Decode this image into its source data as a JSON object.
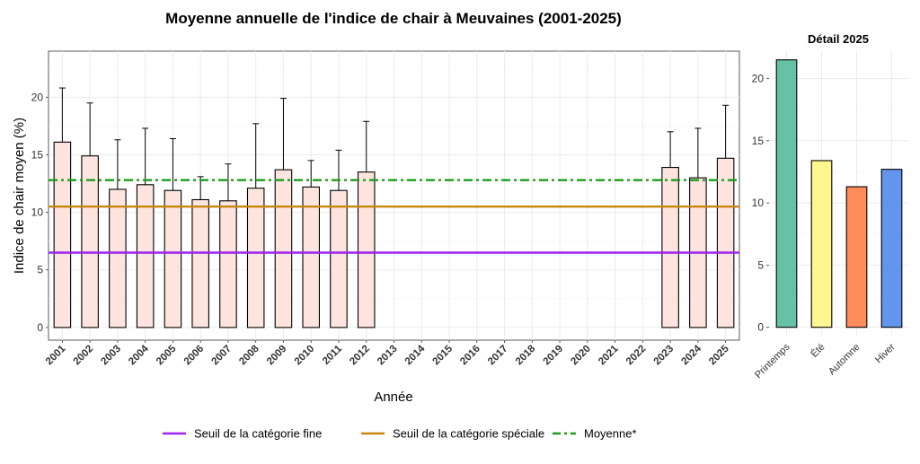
{
  "colors": {
    "bar_fill": "#fde4de",
    "bar_stroke": "#000000",
    "seuil_fine": "#a020f0",
    "seuil_speciale": "#c8860a",
    "moyenne": "#1a9e1a",
    "season_fills": [
      "#66c2a5",
      "#fff68f",
      "#ff8c5a",
      "#6495ed"
    ]
  },
  "legend": {
    "items": [
      {
        "label": "Seuil de la catégorie fine",
        "style": "solid",
        "color_key": "seuil_fine"
      },
      {
        "label": "Seuil de la catégorie spéciale",
        "style": "solid",
        "color_key": "seuil_speciale"
      },
      {
        "label": "Moyenne*",
        "style": "dashdot",
        "color_key": "moyenne"
      }
    ]
  },
  "chart_data": [
    {
      "type": "bar",
      "title": "Moyenne annuelle de l'indice de chair à Meuvaines (2001-2025)",
      "xlabel": "Année",
      "ylabel": "Indice de chair moyen (%)",
      "ylim": [
        -1.1,
        24
      ],
      "yticks": [
        0,
        5,
        10,
        15,
        20
      ],
      "grid": true,
      "categories": [
        "2001",
        "2002",
        "2003",
        "2004",
        "2005",
        "2006",
        "2007",
        "2008",
        "2009",
        "2010",
        "2011",
        "2012",
        "2013",
        "2014",
        "2015",
        "2016",
        "2017",
        "2018",
        "2019",
        "2020",
        "2021",
        "2022",
        "2023",
        "2024",
        "2025"
      ],
      "values": [
        16.1,
        14.9,
        12.0,
        12.4,
        11.9,
        11.1,
        11.0,
        12.1,
        13.7,
        12.2,
        11.9,
        13.5,
        null,
        null,
        null,
        null,
        null,
        null,
        null,
        null,
        null,
        null,
        13.9,
        13.0,
        14.7
      ],
      "error_upper": [
        20.8,
        19.5,
        16.3,
        17.3,
        16.4,
        13.1,
        14.2,
        17.7,
        19.9,
        14.5,
        15.4,
        17.9,
        null,
        null,
        null,
        null,
        null,
        null,
        null,
        null,
        null,
        null,
        17.0,
        17.3,
        19.3
      ],
      "reference_lines": [
        {
          "name": "Seuil de la catégorie fine",
          "y": 6.5
        },
        {
          "name": "Seuil de la catégorie spéciale",
          "y": 10.5
        },
        {
          "name": "Moyenne*",
          "y": 12.8
        }
      ],
      "legend_position": "bottom"
    },
    {
      "type": "bar",
      "title": "Détail 2025",
      "ylim": [
        -0.6,
        22.2
      ],
      "yticks": [
        0,
        5,
        10,
        15,
        20
      ],
      "grid": true,
      "categories": [
        "Printemps",
        "Été",
        "Automne",
        "Hiver"
      ],
      "values": [
        21.5,
        13.4,
        11.3,
        12.7
      ]
    }
  ]
}
